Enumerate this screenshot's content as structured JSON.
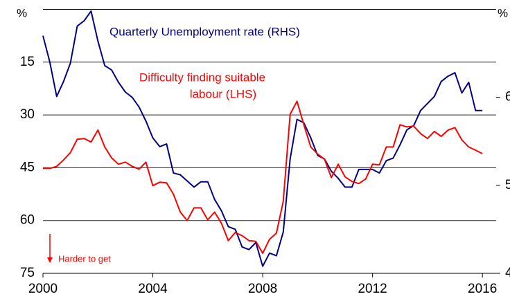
{
  "chart_data": {
    "type": "line",
    "left_unit": "%",
    "right_unit": "%",
    "annotations": [
      "Quarterly Unemployment rate (RHS)",
      "Difficulty finding suitable",
      "labour (LHS)",
      "Harder to get"
    ],
    "x": [
      2000,
      2000.25,
      2000.5,
      2000.75,
      2001,
      2001.25,
      2001.5,
      2001.75,
      2002,
      2002.25,
      2002.5,
      2002.75,
      2003,
      2003.25,
      2003.5,
      2003.75,
      2004,
      2004.25,
      2004.5,
      2004.75,
      2005,
      2005.25,
      2005.5,
      2005.75,
      2006,
      2006.25,
      2006.5,
      2006.75,
      2007,
      2007.25,
      2007.5,
      2007.75,
      2008,
      2008.25,
      2008.5,
      2008.75,
      2009,
      2009.25,
      2009.5,
      2009.75,
      2010,
      2010.25,
      2010.5,
      2010.75,
      2011,
      2011.25,
      2011.5,
      2011.75,
      2012,
      2012.25,
      2012.5,
      2012.75,
      2013,
      2013.25,
      2013.5,
      2013.75,
      2014,
      2014.25,
      2014.5,
      2014.75,
      2015,
      2015.25,
      2015.5,
      2015.75,
      2016
    ],
    "series": [
      {
        "name": "Quarterly Unemployment rate (RHS)",
        "color": "#000080",
        "axis": "y2",
        "values": [
          6.7,
          6.4,
          6.01,
          6.18,
          6.39,
          6.81,
          6.87,
          6.98,
          6.64,
          6.36,
          6.31,
          6.17,
          6.06,
          6.0,
          5.89,
          5.73,
          5.54,
          5.44,
          5.47,
          5.14,
          5.12,
          5.05,
          4.98,
          5.04,
          5.04,
          4.84,
          4.71,
          4.53,
          4.5,
          4.3,
          4.27,
          4.35,
          4.08,
          4.23,
          4.2,
          4.47,
          5.3,
          5.75,
          5.71,
          5.54,
          5.34,
          5.3,
          5.16,
          5.08,
          4.98,
          4.98,
          5.18,
          5.18,
          5.18,
          5.14,
          5.28,
          5.31,
          5.46,
          5.63,
          5.68,
          5.85,
          5.93,
          6.01,
          6.18,
          6.24,
          6.28,
          6.05,
          6.17,
          5.85,
          5.85
        ]
      },
      {
        "name": "Difficulty finding suitable labour (LHS)",
        "color": "#ff0000",
        "values": [
          45.2,
          45.2,
          44.6,
          42.8,
          40.7,
          36.9,
          36.7,
          37.7,
          34.3,
          39.1,
          42.2,
          44.0,
          43.4,
          44.6,
          45.4,
          43.4,
          50.1,
          49.1,
          49.3,
          52.5,
          57.6,
          60.0,
          56.4,
          56.4,
          59.8,
          57.6,
          60.8,
          65.7,
          63.4,
          64.3,
          65.7,
          65.9,
          69.3,
          65.3,
          63.6,
          54.5,
          29.8,
          26.1,
          32.8,
          39.1,
          41.1,
          42.6,
          47.8,
          44.0,
          47.6,
          48.9,
          49.5,
          48.2,
          44.0,
          44.2,
          39.1,
          39.1,
          32.8,
          33.4,
          33.2,
          35.3,
          36.7,
          34.7,
          36.1,
          34.3,
          33.6,
          37.1,
          39.1,
          40.0,
          41.0
        ]
      }
    ],
    "xlim": [
      2000,
      2016.5
    ],
    "xticks": [
      2000,
      2004,
      2008,
      2012,
      2016
    ],
    "ylim": [
      0,
      75
    ],
    "yticks": [
      15,
      30,
      45,
      60,
      75
    ],
    "y_inverted": true,
    "y2lim": [
      4,
      7
    ],
    "y2ticks": [
      4,
      5,
      6
    ],
    "grid": true
  }
}
